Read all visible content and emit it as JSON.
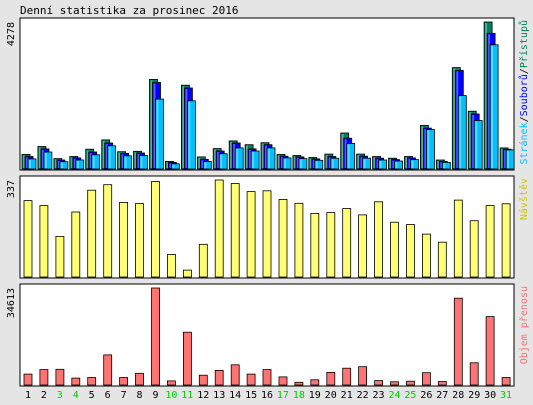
{
  "title": "Denní statistika za prosinec 2016",
  "colors": {
    "background": "#e5e5e5",
    "panel": "#ffffff",
    "frame": "#000000",
    "hits": "#00805c",
    "files": "#0000ff",
    "pages": "#00c0ff",
    "visits": "#ffff00",
    "kbytes": "#ff0000",
    "weekend_label": "#00cc00",
    "weekday_label": "#000000"
  },
  "chart_data": [
    {
      "type": "bar",
      "title": "Denní statistika za prosinec 2016",
      "ymax_label": "4278",
      "ylim": [
        0,
        4278
      ],
      "legend": [
        "Stránek",
        "/",
        "Souborů",
        "/",
        "Přístupů"
      ],
      "categories": [
        "1",
        "2",
        "3",
        "4",
        "5",
        "6",
        "7",
        "8",
        "9",
        "10",
        "11",
        "12",
        "13",
        "14",
        "15",
        "16",
        "17",
        "18",
        "19",
        "20",
        "21",
        "22",
        "23",
        "24",
        "25",
        "26",
        "27",
        "28",
        "29",
        "30",
        "31"
      ],
      "weekend_days": [
        3,
        4,
        10,
        11,
        17,
        18,
        24,
        25,
        31
      ],
      "series": [
        {
          "name": "Přístupů",
          "values": [
            450,
            680,
            330,
            390,
            600,
            870,
            530,
            540,
            2620,
            250,
            2450,
            380,
            620,
            840,
            730,
            790,
            450,
            420,
            360,
            460,
            1070,
            460,
            390,
            340,
            390,
            1290,
            290,
            2960,
            1700,
            4278,
            640
          ]
        },
        {
          "name": "Souborů",
          "values": [
            390,
            610,
            290,
            350,
            520,
            780,
            480,
            490,
            2530,
            220,
            2370,
            310,
            550,
            780,
            610,
            730,
            400,
            380,
            320,
            390,
            920,
            400,
            340,
            300,
            350,
            1210,
            250,
            2880,
            1620,
            3950,
            600
          ]
        },
        {
          "name": "Stránek",
          "values": [
            320,
            520,
            240,
            290,
            440,
            700,
            410,
            420,
            2050,
            180,
            2000,
            250,
            470,
            640,
            550,
            640,
            350,
            330,
            280,
            340,
            770,
            340,
            290,
            260,
            300,
            1170,
            220,
            2150,
            1430,
            3620,
            580
          ]
        }
      ]
    },
    {
      "type": "bar",
      "ymax_label": "337",
      "ylim": [
        0,
        337
      ],
      "legend": [
        "Návštěv"
      ],
      "categories": [
        "1",
        "2",
        "3",
        "4",
        "5",
        "6",
        "7",
        "8",
        "9",
        "10",
        "11",
        "12",
        "13",
        "14",
        "15",
        "16",
        "17",
        "18",
        "19",
        "20",
        "21",
        "22",
        "23",
        "24",
        "25",
        "26",
        "27",
        "28",
        "29",
        "30",
        "31"
      ],
      "series": [
        {
          "name": "Návštěv",
          "values": [
            266,
            249,
            143,
            227,
            302,
            321,
            260,
            256,
            332,
            81,
            27,
            116,
            337,
            325,
            297,
            300,
            270,
            257,
            222,
            225,
            239,
            217,
            262,
            192,
            184,
            151,
            123,
            268,
            197,
            249,
            255
          ]
        }
      ]
    },
    {
      "type": "bar",
      "ymax_label": "34613",
      "ylim": [
        0,
        34613
      ],
      "legend": [
        "Objem přenosu"
      ],
      "categories": [
        "1",
        "2",
        "3",
        "4",
        "5",
        "6",
        "7",
        "8",
        "9",
        "10",
        "11",
        "12",
        "13",
        "14",
        "15",
        "16",
        "17",
        "18",
        "19",
        "20",
        "21",
        "22",
        "23",
        "24",
        "25",
        "26",
        "27",
        "28",
        "29",
        "30",
        "31"
      ],
      "series": [
        {
          "name": "Objem přenosu",
          "values": [
            4200,
            5800,
            5900,
            2800,
            3000,
            11000,
            3000,
            4500,
            34613,
            1800,
            19000,
            3800,
            5500,
            7500,
            4200,
            5800,
            3200,
            1300,
            2200,
            4800,
            6300,
            6800,
            1900,
            1500,
            1700,
            4700,
            1600,
            31000,
            8200,
            24500,
            3000
          ]
        }
      ]
    }
  ]
}
